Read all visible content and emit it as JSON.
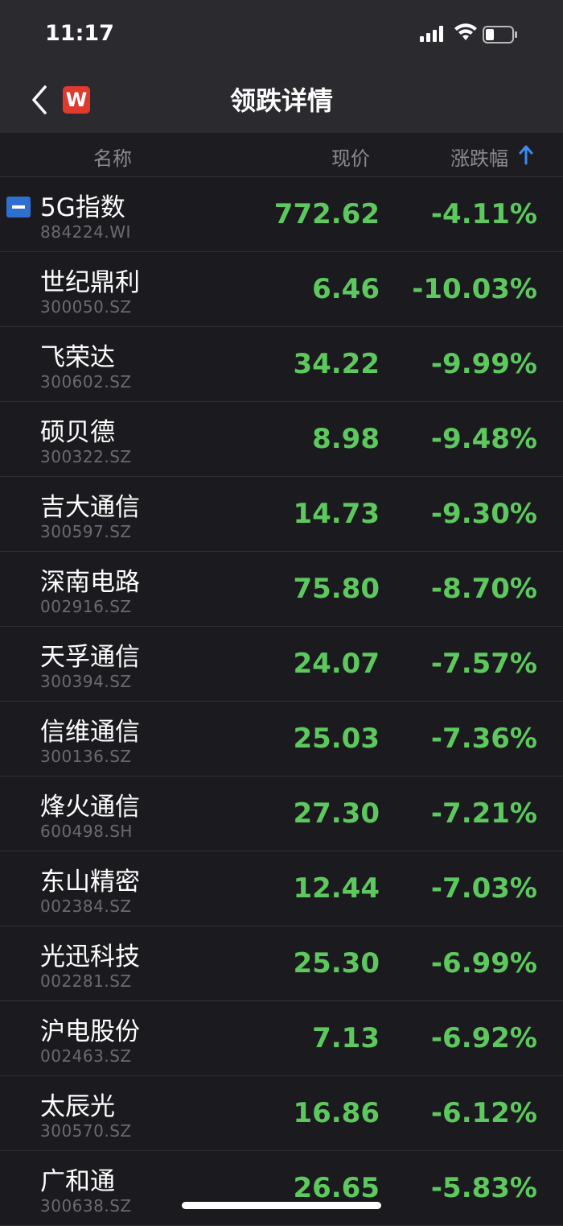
{
  "status_bar": {
    "time": "11:17",
    "icons": [
      "signal-icon",
      "wifi-icon",
      "battery-icon"
    ]
  },
  "nav": {
    "title": "领跌详情",
    "logo_text": "W",
    "back_icon": "chevron-left-icon"
  },
  "columns": {
    "name": "名称",
    "price": "现价",
    "change": "涨跌幅",
    "sort_icon": "arrow-up-icon"
  },
  "colors": {
    "down_green": "#5dc85d",
    "accent_blue": "#2f6fd0",
    "logo_red": "#e03a2e"
  },
  "rows": [
    {
      "name": "5G指数",
      "code": "884224.WI",
      "price": "772.62",
      "change": "-4.11%"
    },
    {
      "name": "世纪鼎利",
      "code": "300050.SZ",
      "price": "6.46",
      "change": "-10.03%"
    },
    {
      "name": "飞荣达",
      "code": "300602.SZ",
      "price": "34.22",
      "change": "-9.99%"
    },
    {
      "name": "硕贝德",
      "code": "300322.SZ",
      "price": "8.98",
      "change": "-9.48%"
    },
    {
      "name": "吉大通信",
      "code": "300597.SZ",
      "price": "14.73",
      "change": "-9.30%"
    },
    {
      "name": "深南电路",
      "code": "002916.SZ",
      "price": "75.80",
      "change": "-8.70%"
    },
    {
      "name": "天孚通信",
      "code": "300394.SZ",
      "price": "24.07",
      "change": "-7.57%"
    },
    {
      "name": "信维通信",
      "code": "300136.SZ",
      "price": "25.03",
      "change": "-7.36%"
    },
    {
      "name": "烽火通信",
      "code": "600498.SH",
      "price": "27.30",
      "change": "-7.21%"
    },
    {
      "name": "东山精密",
      "code": "002384.SZ",
      "price": "12.44",
      "change": "-7.03%"
    },
    {
      "name": "光迅科技",
      "code": "002281.SZ",
      "price": "25.30",
      "change": "-6.99%"
    },
    {
      "name": "沪电股份",
      "code": "002463.SZ",
      "price": "7.13",
      "change": "-6.92%"
    },
    {
      "name": "太辰光",
      "code": "300570.SZ",
      "price": "16.86",
      "change": "-6.12%"
    },
    {
      "name": "广和通",
      "code": "300638.SZ",
      "price": "26.65",
      "change": "-5.83%"
    }
  ]
}
